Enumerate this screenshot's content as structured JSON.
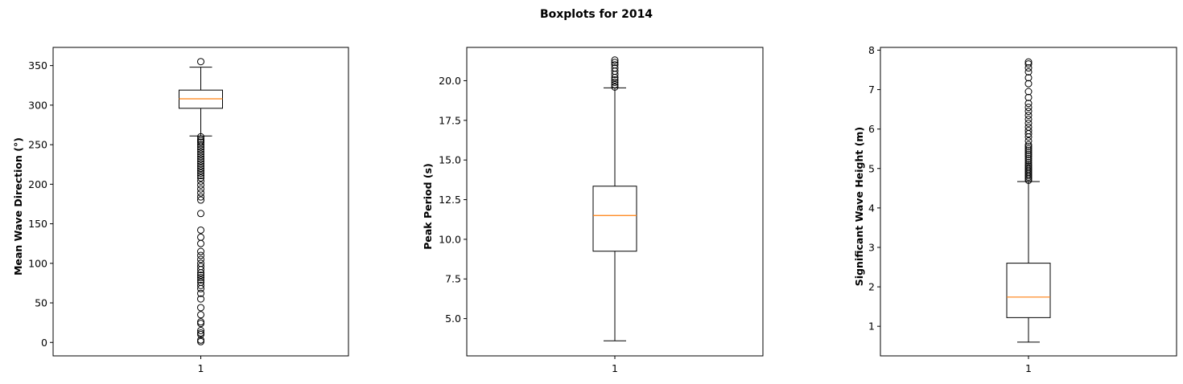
{
  "figure": {
    "title": "Boxplots for 2014"
  },
  "chart_data": [
    {
      "type": "boxplot",
      "ylabel": "Mean Wave Direction (°)",
      "xticks": [
        "1"
      ],
      "ylim": [
        -17,
        373
      ],
      "yticks": [
        0,
        50,
        100,
        150,
        200,
        250,
        300,
        350
      ],
      "ytick_labels": [
        "0",
        "50",
        "100",
        "150",
        "200",
        "250",
        "300",
        "350"
      ],
      "box": {
        "whisker_low": 261,
        "q1": 296,
        "median": 308,
        "q3": 319,
        "whisker_high": 348
      },
      "outliers": [
        355,
        260,
        257,
        255,
        253,
        250,
        247,
        244,
        241,
        238,
        235,
        232,
        229,
        226,
        223,
        220,
        217,
        214,
        211,
        208,
        204,
        199,
        194,
        189,
        184,
        180,
        163,
        142,
        133,
        125,
        115,
        110,
        105,
        100,
        96,
        92,
        88,
        85,
        82,
        79,
        76,
        72,
        68,
        62,
        55,
        44,
        35,
        26,
        24,
        15,
        12,
        10,
        3,
        1
      ]
    },
    {
      "type": "boxplot",
      "ylabel": "Peak Period (s)",
      "xticks": [
        "1"
      ],
      "ylim": [
        2.65,
        22.1
      ],
      "yticks": [
        5.0,
        7.5,
        10.0,
        12.5,
        15.0,
        17.5,
        20.0
      ],
      "ytick_labels": [
        "5.0",
        "7.5",
        "10.0",
        "12.5",
        "15.0",
        "17.5",
        "20.0"
      ],
      "box": {
        "whisker_low": 3.6,
        "q1": 9.25,
        "median": 11.5,
        "q3": 13.35,
        "whisker_high": 19.55
      },
      "outliers": [
        19.6,
        19.75,
        19.9,
        20.05,
        20.2,
        20.4,
        20.6,
        20.8,
        21.0,
        21.15,
        21.3
      ]
    },
    {
      "type": "boxplot",
      "ylabel": "Significant Wave Height (m)",
      "xticks": [
        "1"
      ],
      "ylim": [
        0.25,
        8.07
      ],
      "yticks": [
        1,
        2,
        3,
        4,
        5,
        6,
        7,
        8
      ],
      "ytick_labels": [
        "1",
        "2",
        "3",
        "4",
        "5",
        "6",
        "7",
        "8"
      ],
      "box": {
        "whisker_low": 0.6,
        "q1": 1.22,
        "median": 1.74,
        "q3": 2.6,
        "whisker_high": 4.67
      },
      "outliers": [
        4.7,
        4.74,
        4.78,
        4.82,
        4.86,
        4.9,
        4.94,
        4.98,
        5.02,
        5.06,
        5.1,
        5.15,
        5.2,
        5.25,
        5.3,
        5.35,
        5.4,
        5.45,
        5.5,
        5.55,
        5.6,
        5.7,
        5.8,
        5.88,
        5.96,
        6.05,
        6.15,
        6.25,
        6.35,
        6.45,
        6.55,
        6.65,
        6.8,
        6.95,
        7.15,
        7.3,
        7.45,
        7.55,
        7.65,
        7.7
      ]
    }
  ]
}
